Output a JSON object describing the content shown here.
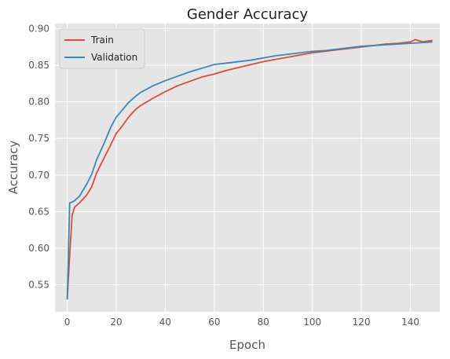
{
  "chart_data": {
    "type": "line",
    "title": "Gender Accuracy",
    "xlabel": "Epoch",
    "ylabel": "Accuracy",
    "xlim": [
      -5,
      152
    ],
    "ylim": [
      0.513,
      0.907
    ],
    "xticks": [
      0,
      20,
      40,
      60,
      80,
      100,
      120,
      140
    ],
    "yticks": [
      0.55,
      0.6,
      0.65,
      0.7,
      0.75,
      0.8,
      0.85,
      0.9
    ],
    "ytick_labels": [
      "0.55",
      "0.60",
      "0.65",
      "0.70",
      "0.75",
      "0.80",
      "0.85",
      "0.90"
    ],
    "grid": true,
    "legend_position": "top-left",
    "background_color": "#e5e5e5",
    "series": [
      {
        "name": "Train",
        "color": "#e24a33",
        "x": [
          0,
          1,
          2,
          3,
          5,
          8,
          10,
          12,
          15,
          18,
          20,
          22,
          25,
          28,
          30,
          35,
          40,
          45,
          50,
          55,
          60,
          65,
          70,
          75,
          80,
          85,
          90,
          95,
          100,
          105,
          110,
          115,
          120,
          125,
          130,
          135,
          140,
          142,
          145,
          149
        ],
        "y": [
          0.53,
          0.59,
          0.645,
          0.656,
          0.662,
          0.673,
          0.684,
          0.703,
          0.723,
          0.743,
          0.757,
          0.765,
          0.779,
          0.79,
          0.795,
          0.805,
          0.814,
          0.822,
          0.828,
          0.834,
          0.838,
          0.843,
          0.847,
          0.851,
          0.855,
          0.858,
          0.861,
          0.864,
          0.867,
          0.869,
          0.871,
          0.873,
          0.875,
          0.877,
          0.879,
          0.88,
          0.882,
          0.885,
          0.882,
          0.884
        ]
      },
      {
        "name": "Validation",
        "color": "#348abd",
        "x": [
          0,
          1,
          2,
          3,
          5,
          8,
          10,
          12,
          15,
          18,
          20,
          22,
          25,
          28,
          30,
          35,
          40,
          45,
          50,
          55,
          60,
          65,
          70,
          75,
          80,
          85,
          90,
          95,
          100,
          105,
          110,
          115,
          120,
          125,
          130,
          135,
          140,
          145,
          149
        ],
        "y": [
          0.53,
          0.662,
          0.663,
          0.665,
          0.671,
          0.688,
          0.701,
          0.721,
          0.743,
          0.767,
          0.779,
          0.787,
          0.799,
          0.808,
          0.813,
          0.822,
          0.829,
          0.835,
          0.841,
          0.846,
          0.851,
          0.853,
          0.855,
          0.857,
          0.86,
          0.863,
          0.865,
          0.867,
          0.869,
          0.87,
          0.872,
          0.874,
          0.876,
          0.877,
          0.878,
          0.879,
          0.88,
          0.881,
          0.882
        ]
      }
    ]
  }
}
